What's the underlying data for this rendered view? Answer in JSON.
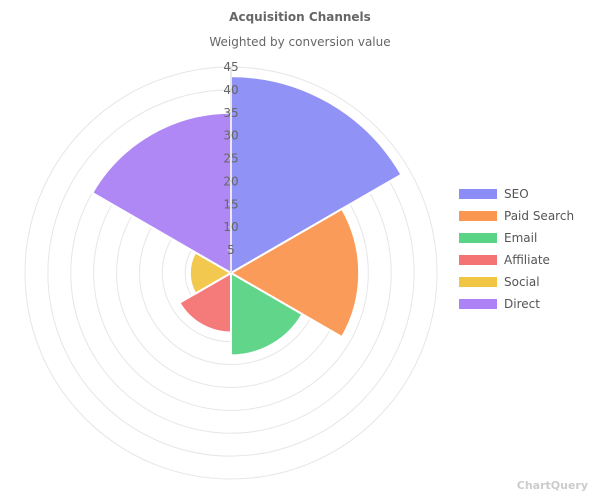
{
  "chart_data": {
    "type": "polar-area",
    "title": "Acquisition Channels",
    "subtitle": "Weighted by conversion value",
    "categories": [
      "SEO",
      "Paid Search",
      "Email",
      "Affiliate",
      "Social",
      "Direct"
    ],
    "values": [
      43,
      28,
      18,
      13,
      9,
      35
    ],
    "colors": [
      "#8b8cf5",
      "#fb9651",
      "#59d484",
      "#f47474",
      "#f1c644",
      "#ac82f6"
    ],
    "r_ticks": [
      5,
      10,
      15,
      20,
      25,
      30,
      35,
      40,
      45
    ],
    "r_max": 45,
    "grid": true,
    "legend_position": "right"
  },
  "watermark": "ChartQuery"
}
